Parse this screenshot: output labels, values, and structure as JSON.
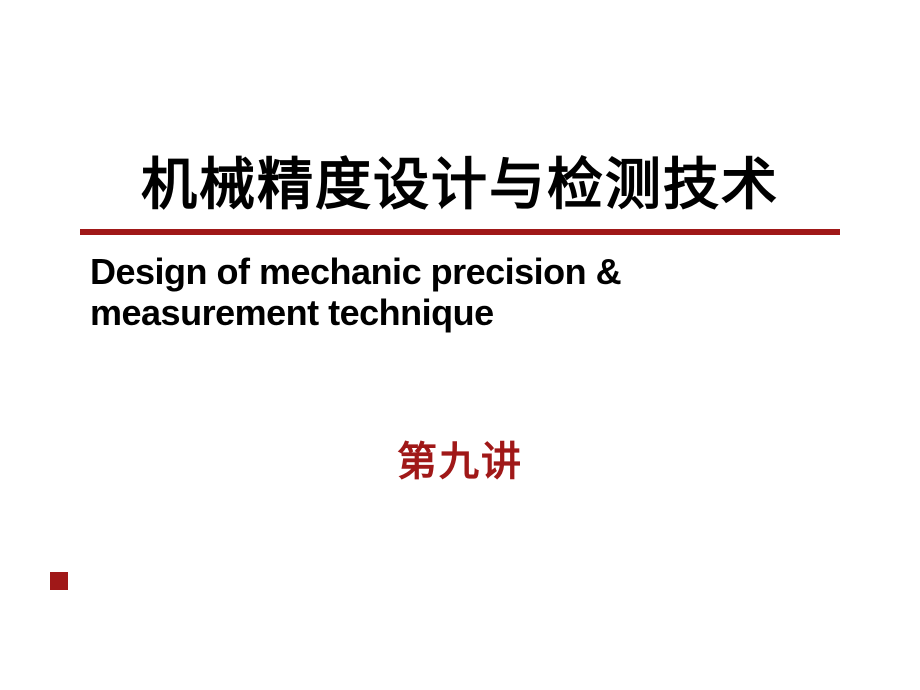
{
  "slide": {
    "main_title": "机械精度设计与检测技术",
    "subtitle": "Design of mechanic precision & measurement technique",
    "lecture_number": "第九讲",
    "colors": {
      "accent": "#a01818",
      "text_primary": "#000000",
      "background": "#ffffff"
    },
    "typography": {
      "main_title_fontsize": 56,
      "subtitle_fontsize": 36,
      "lecture_fontsize": 40,
      "main_title_weight": 900,
      "subtitle_weight": 900
    },
    "layout": {
      "divider_height": 6,
      "corner_marker_size": 18
    }
  }
}
